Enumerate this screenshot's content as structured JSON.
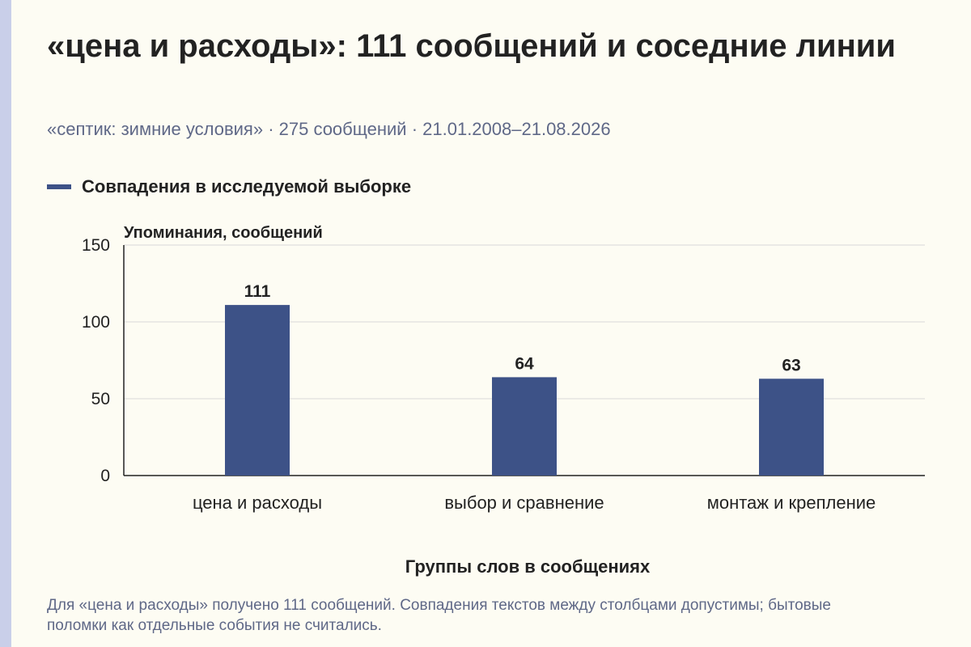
{
  "header": {
    "title": "«цена и расходы»: 111 сообщений и соседние линии",
    "subtitle": "«септик: зимние условия» · 275 сообщений · 21.01.2008–21.08.2026"
  },
  "legend": {
    "label": "Совпадения в исследуемой выборке",
    "color": "#3d5287"
  },
  "footnote": "Для «цена и расходы» получено 111 сообщений. Совпадения текстов между столбцами допустимы; бытовые поломки как отдельные события не считались.",
  "colors": {
    "bar": "#3d5287",
    "axis": "#222222",
    "grid": "#d9d9d9",
    "stripe": "#c9cfe9",
    "background": "#fdfcf3"
  },
  "chart_data": {
    "type": "bar",
    "categories": [
      "цена и расходы",
      "выбор и сравнение",
      "монтаж и крепление"
    ],
    "series": [
      {
        "name": "Совпадения в исследуемой выборке",
        "values": [
          111,
          64,
          63
        ]
      }
    ],
    "data_labels": [
      "111",
      "64",
      "63"
    ],
    "ylabel": "Упоминания, сообщений",
    "xlabel": "Группы слов в сообщениях",
    "ylim": [
      0,
      150
    ],
    "yticks": [
      0,
      50,
      100,
      150
    ],
    "grid": true,
    "legend_position": "top-left"
  }
}
